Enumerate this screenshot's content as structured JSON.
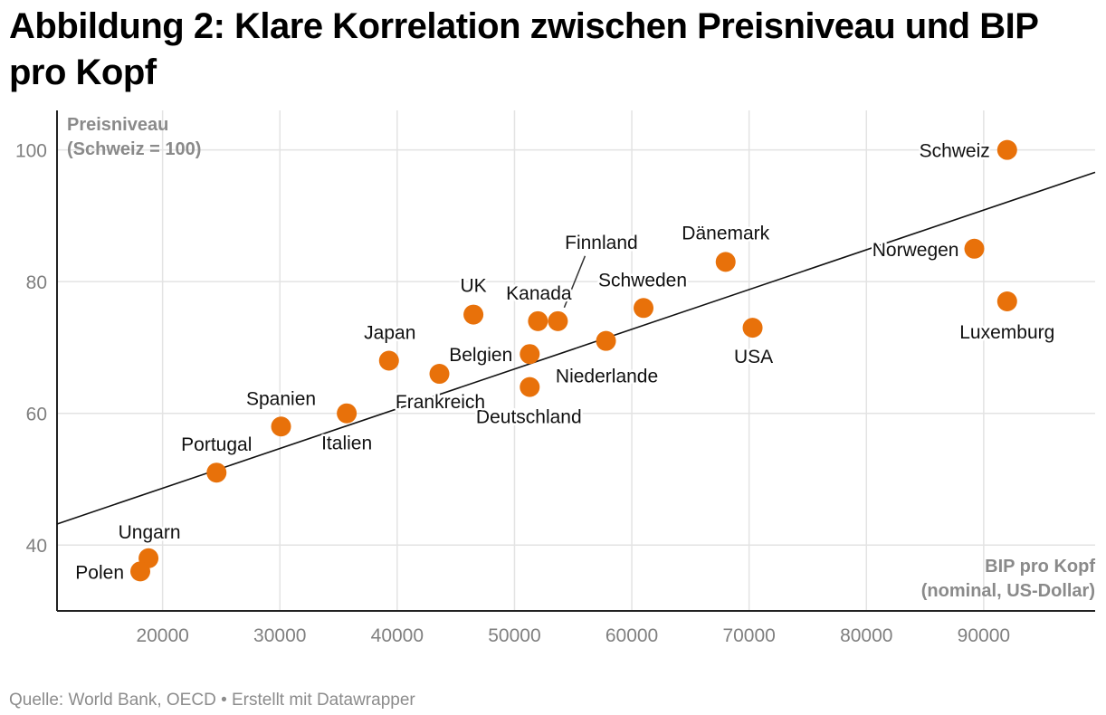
{
  "title": "Abbildung 2: Klare Korrelation zwischen Preisniveau und BIP pro Kopf",
  "source": "Quelle: World Bank, OECD • Erstellt mit Datawrapper",
  "chart_data": {
    "type": "scatter",
    "ylabel_lines": [
      "Preisniveau",
      "(Schweiz = 100)"
    ],
    "xlabel_lines": [
      "BIP pro Kopf",
      "(nominal, US-Dollar)"
    ],
    "xlim": [
      11000,
      99500
    ],
    "ylim": [
      30,
      106
    ],
    "x_ticks": [
      20000,
      30000,
      40000,
      50000,
      60000,
      70000,
      80000,
      90000
    ],
    "y_ticks": [
      40,
      60,
      80,
      100
    ],
    "grid": true,
    "point_color": "#e8710a",
    "trendline": {
      "x": [
        11000,
        99500
      ],
      "y": [
        43.2,
        96.6
      ]
    },
    "points": [
      {
        "name": "Schweiz",
        "x": 92000,
        "y": 100
      },
      {
        "name": "Norwegen",
        "x": 89200,
        "y": 85
      },
      {
        "name": "Luxemburg",
        "x": 92000,
        "y": 77
      },
      {
        "name": "Dänemark",
        "x": 68000,
        "y": 83
      },
      {
        "name": "USA",
        "x": 70300,
        "y": 73
      },
      {
        "name": "Schweden",
        "x": 61000,
        "y": 76
      },
      {
        "name": "Finnland",
        "x": 53700,
        "y": 74
      },
      {
        "name": "Kanada",
        "x": 52000,
        "y": 74
      },
      {
        "name": "Niederlande",
        "x": 57800,
        "y": 71
      },
      {
        "name": "UK",
        "x": 46500,
        "y": 75
      },
      {
        "name": "Belgien",
        "x": 51300,
        "y": 69
      },
      {
        "name": "Deutschland",
        "x": 51300,
        "y": 64
      },
      {
        "name": "Frankreich",
        "x": 43600,
        "y": 66
      },
      {
        "name": "Japan",
        "x": 39300,
        "y": 68
      },
      {
        "name": "Italien",
        "x": 35700,
        "y": 60
      },
      {
        "name": "Spanien",
        "x": 30100,
        "y": 58
      },
      {
        "name": "Portugal",
        "x": 24600,
        "y": 51
      },
      {
        "name": "Ungarn",
        "x": 18800,
        "y": 38
      },
      {
        "name": "Polen",
        "x": 18100,
        "y": 36
      }
    ]
  }
}
